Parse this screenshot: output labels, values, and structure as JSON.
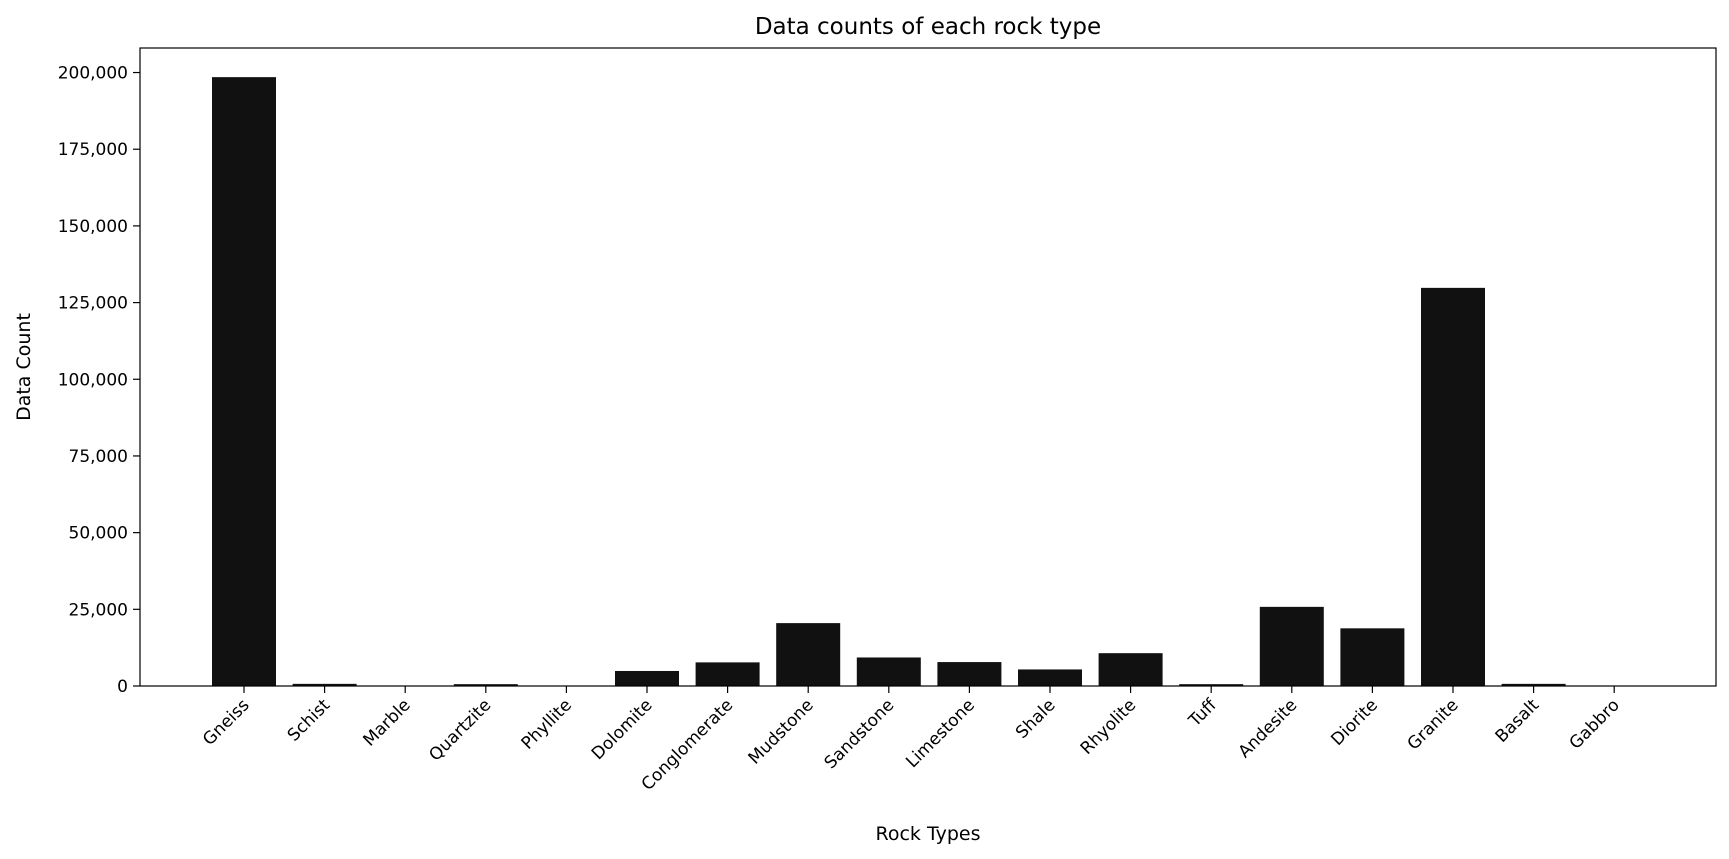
{
  "chart_data": {
    "type": "bar",
    "title": "Data counts of each rock type",
    "xlabel": "Rock Types",
    "ylabel": "Data Count",
    "categories": [
      "Gneiss",
      "Schist",
      "Marble",
      "Quartzite",
      "Phyllite",
      "Dolomite",
      "Conglomerate",
      "Mudstone",
      "Sandstone",
      "Limestone",
      "Shale",
      "Rhyolite",
      "Tuff",
      "Andesite",
      "Diorite",
      "Granite",
      "Basalt",
      "Gabbro"
    ],
    "values": [
      198500,
      700,
      100,
      600,
      100,
      4900,
      7700,
      20500,
      9300,
      7800,
      5400,
      10700,
      600,
      25800,
      18800,
      129800,
      700,
      100
    ],
    "ylim": [
      0,
      208000
    ],
    "yticks": [
      0,
      25000,
      50000,
      75000,
      100000,
      125000,
      150000,
      175000,
      200000
    ],
    "ytick_labels": [
      "0",
      "25,000",
      "50,000",
      "75,000",
      "100,000",
      "125,000",
      "150,000",
      "175,000",
      "200,000"
    ],
    "bar_color": "#111111",
    "grid": false,
    "legend": "none"
  }
}
